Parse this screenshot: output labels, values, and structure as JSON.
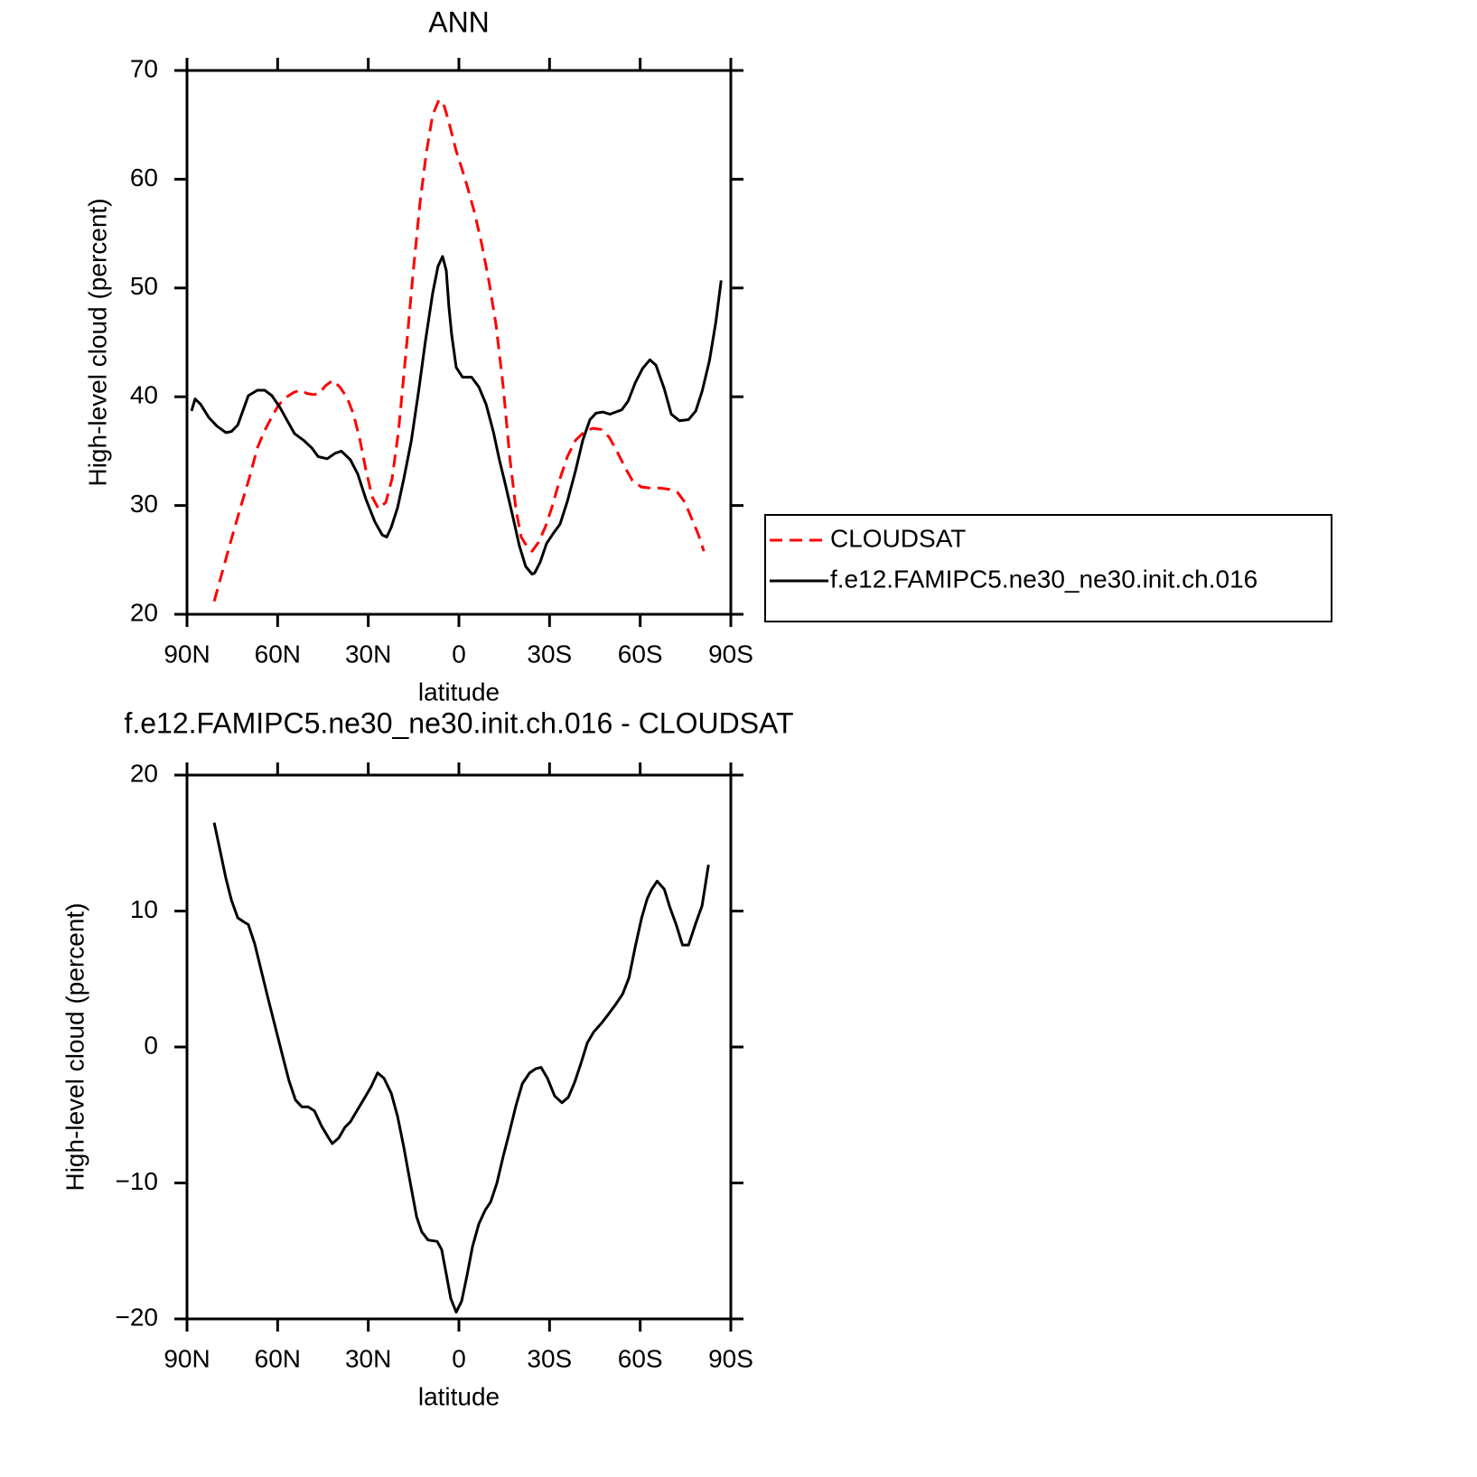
{
  "chart_data": [
    {
      "type": "line",
      "title": "ANN",
      "xlabel": "latitude",
      "ylabel": "High-level cloud (percent)",
      "xlim": [
        90,
        -90
      ],
      "ylim": [
        20,
        70
      ],
      "xticks": [
        {
          "value": 90,
          "label": "90N"
        },
        {
          "value": 60,
          "label": "60N"
        },
        {
          "value": 30,
          "label": "30N"
        },
        0,
        {
          "value": -30,
          "label": "30S"
        },
        {
          "value": -60,
          "label": "60S"
        },
        {
          "value": -90,
          "label": "90S"
        }
      ],
      "yticks": [
        20,
        30,
        40,
        50,
        60,
        70
      ],
      "legend": "right",
      "series": [
        {
          "name": "CLOUDSAT",
          "color": "#ff0000",
          "style": "dashed",
          "x": [
            81.0,
            78.0,
            75.1,
            72.1,
            69.1,
            66.7,
            64.3,
            62.2,
            59.8,
            57.4,
            54.7,
            52.6,
            50.2,
            48.1,
            46.3,
            44.2,
            41.8,
            39.4,
            37.0,
            34.9,
            32.8,
            30.8,
            28.7,
            26.6,
            24.2,
            22.1,
            20.0,
            17.6,
            15.2,
            12.9,
            10.8,
            8.7,
            6.6,
            4.8,
            3.0,
            0.9,
            -2.1,
            -5.1,
            -7.5,
            -9.9,
            -12.3,
            -14.7,
            -16.8,
            -18.9,
            -20.6,
            -22.4,
            -24.2,
            -26.3,
            -28.7,
            -31.1,
            -33.5,
            -35.9,
            -38.6,
            -41.6,
            -44.3,
            -47.0,
            -49.7,
            -52.3,
            -55.0,
            -57.4,
            -60.4,
            -63.4,
            -66.4,
            -69.4,
            -72.4,
            -74.8,
            -77.2,
            -79.3,
            -81.1
          ],
          "values": [
            21.2,
            24.2,
            27.1,
            30.0,
            32.8,
            35.3,
            36.9,
            38.0,
            39.2,
            39.9,
            40.4,
            40.6,
            40.3,
            40.2,
            40.3,
            41.0,
            41.5,
            40.9,
            39.9,
            38.4,
            36.1,
            33.3,
            30.8,
            29.7,
            30.3,
            32.5,
            36.8,
            43.8,
            51.3,
            57.8,
            62.4,
            65.9,
            67.3,
            66.7,
            64.9,
            62.6,
            60.0,
            57.0,
            54.1,
            50.7,
            46.6,
            40.8,
            34.5,
            29.6,
            27.1,
            26.3,
            25.8,
            26.6,
            28.1,
            30.1,
            32.5,
            34.5,
            36.0,
            36.8,
            37.1,
            37.0,
            36.3,
            35.0,
            33.5,
            32.3,
            31.7,
            31.6,
            31.6,
            31.5,
            31.2,
            30.3,
            28.7,
            27.3,
            25.8
          ]
        },
        {
          "name": "f.e12.FAMIPC5.ne30_ne30.init.ch.016",
          "color": "#000000",
          "style": "solid",
          "x": [
            88.5,
            87.3,
            85.5,
            82.8,
            80.1,
            77.1,
            75.3,
            73.2,
            69.7,
            66.7,
            64.3,
            61.9,
            59.2,
            56.8,
            54.4,
            51.4,
            48.7,
            46.6,
            43.6,
            41.0,
            38.9,
            35.9,
            33.5,
            30.8,
            27.8,
            25.4,
            23.9,
            22.4,
            20.3,
            18.2,
            15.8,
            13.4,
            11.1,
            8.7,
            6.9,
            5.4,
            4.2,
            3.3,
            2.4,
            0.9,
            -1.2,
            -4.2,
            -6.6,
            -9.0,
            -11.4,
            -13.4,
            -15.5,
            -17.9,
            -20.0,
            -22.1,
            -24.2,
            -25.1,
            -26.9,
            -29.0,
            -31.4,
            -33.5,
            -35.9,
            -38.6,
            -41.0,
            -43.4,
            -45.4,
            -47.6,
            -50.0,
            -53.9,
            -56.0,
            -58.4,
            -60.8,
            -63.2,
            -65.2,
            -67.9,
            -70.3,
            -73.0,
            -76.0,
            -78.4,
            -80.5,
            -82.9,
            -85.0,
            -86.8
          ],
          "values": [
            38.7,
            39.8,
            39.3,
            38.1,
            37.3,
            36.7,
            36.8,
            37.4,
            40.1,
            40.6,
            40.6,
            40.1,
            39.0,
            37.8,
            36.6,
            36.0,
            35.3,
            34.5,
            34.3,
            34.8,
            35.0,
            34.2,
            32.9,
            30.6,
            28.5,
            27.3,
            27.1,
            28.0,
            29.8,
            32.5,
            35.9,
            40.4,
            45.1,
            49.5,
            52.0,
            52.9,
            51.6,
            48.2,
            45.7,
            42.7,
            41.8,
            41.8,
            40.9,
            39.3,
            36.8,
            34.2,
            31.8,
            28.9,
            26.3,
            24.4,
            23.7,
            23.8,
            24.8,
            26.5,
            27.5,
            28.3,
            30.4,
            33.2,
            36.0,
            37.9,
            38.5,
            38.6,
            38.4,
            38.8,
            39.6,
            41.3,
            42.6,
            43.4,
            42.9,
            40.8,
            38.4,
            37.8,
            37.9,
            38.7,
            40.5,
            43.3,
            46.8,
            50.7
          ]
        }
      ]
    },
    {
      "type": "line",
      "title": "f.e12.FAMIPC5.ne30_ne30.init.ch.016 - CLOUDSAT",
      "xlabel": "latitude",
      "ylabel": "High-level cloud (percent)",
      "xlim": [
        90,
        -90
      ],
      "ylim": [
        -20,
        20
      ],
      "xticks": [
        {
          "value": 90,
          "label": "90N"
        },
        {
          "value": 60,
          "label": "60N"
        },
        {
          "value": 30,
          "label": "30N"
        },
        0,
        {
          "value": -30,
          "label": "30S"
        },
        {
          "value": -60,
          "label": "60S"
        },
        {
          "value": -90,
          "label": "90S"
        }
      ],
      "yticks": [
        {
          "value": -20,
          "label": "−20"
        },
        {
          "value": -10,
          "label": "−10"
        },
        0,
        10,
        20
      ],
      "series": [
        {
          "color": "#000000",
          "style": "solid",
          "x": [
            81.0,
            78.9,
            77.1,
            75.3,
            73.2,
            71.2,
            69.7,
            67.6,
            65.5,
            63.1,
            60.7,
            58.3,
            56.2,
            54.1,
            52.0,
            49.9,
            47.8,
            45.5,
            43.1,
            41.9,
            39.8,
            37.7,
            35.9,
            33.8,
            31.1,
            29.0,
            26.9,
            24.8,
            22.4,
            20.3,
            18.2,
            16.1,
            14.0,
            12.3,
            10.2,
            7.2,
            5.7,
            4.2,
            2.7,
            0.9,
            -0.9,
            -2.7,
            -4.5,
            -6.6,
            -8.7,
            -10.5,
            -12.6,
            -14.7,
            -16.8,
            -18.9,
            -21.0,
            -23.4,
            -25.4,
            -27.2,
            -29.3,
            -31.7,
            -34.1,
            -36.2,
            -38.3,
            -40.4,
            -42.5,
            -44.6,
            -47.0,
            -49.1,
            -51.8,
            -54.2,
            -56.3,
            -58.4,
            -60.5,
            -62.3,
            -63.8,
            -65.6,
            -68.0,
            -69.8,
            -71.9,
            -74.0,
            -76.0,
            -78.4,
            -80.5,
            -82.6
          ],
          "values": [
            16.5,
            14.3,
            12.4,
            10.8,
            9.5,
            9.2,
            9.0,
            7.6,
            5.7,
            3.5,
            1.4,
            -0.7,
            -2.5,
            -3.9,
            -4.4,
            -4.4,
            -4.7,
            -5.8,
            -6.7,
            -7.1,
            -6.7,
            -5.9,
            -5.5,
            -4.7,
            -3.7,
            -2.9,
            -1.9,
            -2.3,
            -3.4,
            -5.1,
            -7.4,
            -10.0,
            -12.5,
            -13.6,
            -14.2,
            -14.3,
            -14.9,
            -16.7,
            -18.5,
            -19.5,
            -18.7,
            -16.8,
            -14.7,
            -13.0,
            -12.0,
            -11.4,
            -10.0,
            -8.0,
            -6.2,
            -4.3,
            -2.7,
            -1.9,
            -1.6,
            -1.5,
            -2.3,
            -3.6,
            -4.1,
            -3.7,
            -2.6,
            -1.2,
            0.3,
            1.1,
            1.7,
            2.3,
            3.1,
            3.9,
            5.1,
            7.4,
            9.5,
            10.9,
            11.6,
            12.2,
            11.6,
            10.3,
            9.0,
            7.5,
            7.5,
            9.1,
            10.4,
            13.4
          ]
        }
      ]
    }
  ]
}
